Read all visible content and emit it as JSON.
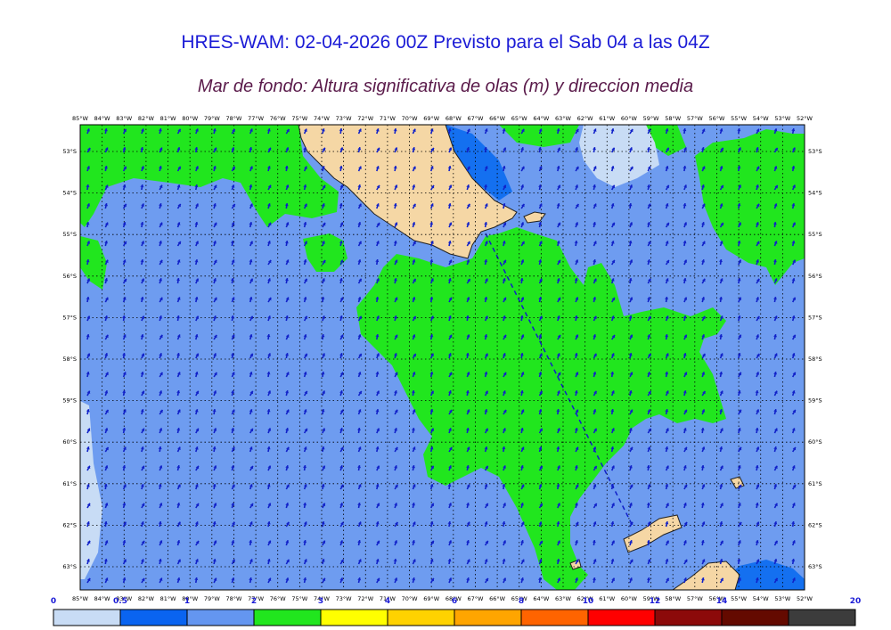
{
  "title": "HRES-WAM: 02-04-2026 00Z Previsto para el Sab 04 a las 04Z",
  "subtitle": "Mar de fondo: Altura significativa de olas (m) y direccion media",
  "longitudes": [
    "85°W",
    "84°W",
    "83°W",
    "82°W",
    "81°W",
    "80°W",
    "79°W",
    "78°W",
    "77°W",
    "76°W",
    "75°W",
    "74°W",
    "73°W",
    "72°W",
    "71°W",
    "70°W",
    "69°W",
    "68°W",
    "67°W",
    "66°W",
    "65°W",
    "64°W",
    "63°W",
    "62°W",
    "61°W",
    "60°W",
    "59°W",
    "58°W",
    "57°W",
    "56°W",
    "55°W",
    "54°W",
    "53°W",
    "52°W"
  ],
  "latitudes": [
    "53°S",
    "54°S",
    "55°S",
    "56°S",
    "57°S",
    "58°S",
    "59°S",
    "60°S",
    "61°S",
    "62°S",
    "63°S"
  ],
  "legend": {
    "labels": [
      "0",
      "0.5",
      "1",
      "2",
      "3",
      "4",
      "6",
      "8",
      "10",
      "12",
      "14",
      "20"
    ],
    "colors": [
      "#c8dcf5",
      "#0a64f0",
      "#6496f0",
      "#21e61e",
      "#ffff00",
      "#ffd200",
      "#ffa500",
      "#ff6400",
      "#ff0000",
      "#8c0a0a",
      "#640a00",
      "#3c3c3c"
    ]
  },
  "map_colors": {
    "sea_low": "#6e9cf0",
    "sea_high": "#21e61e",
    "sea_calm": "#c8dcf5",
    "sea_mid": "#1470f0",
    "land": "#f5d7a5",
    "arrow": "#1020c8"
  }
}
